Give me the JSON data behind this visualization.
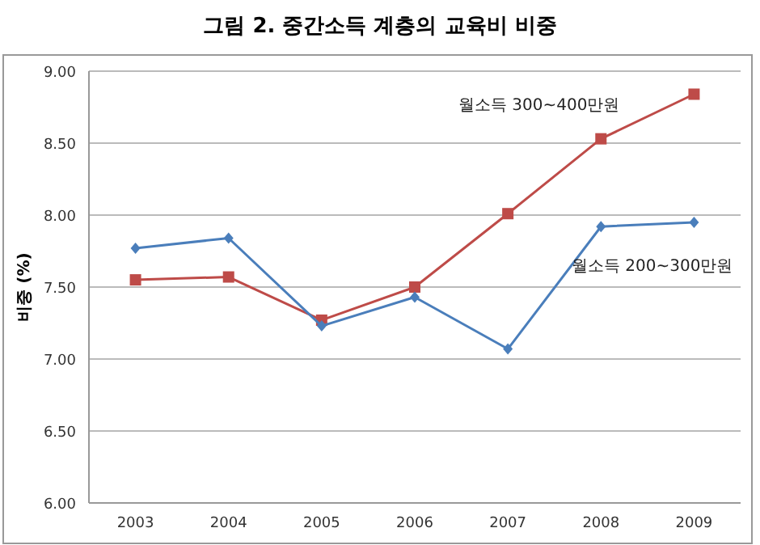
{
  "chart_data": {
    "type": "line",
    "title": "그림 2. 중간소득 계층의 교육비 비중",
    "ylabel": "비중 (%)",
    "categories": [
      "2003",
      "2004",
      "2005",
      "2006",
      "2007",
      "2008",
      "2009"
    ],
    "series": [
      {
        "name": "월소득 200~300만원",
        "color": "#4a7ebb",
        "marker": "diamond",
        "values": [
          7.77,
          7.84,
          7.23,
          7.43,
          7.07,
          7.92,
          7.95
        ]
      },
      {
        "name": "월소득 300~400만원",
        "color": "#be4b48",
        "marker": "square",
        "values": [
          7.55,
          7.57,
          7.27,
          7.5,
          8.01,
          8.53,
          8.84
        ]
      }
    ],
    "ylim": [
      6,
      9
    ],
    "yticks": [
      {
        "value": 6,
        "label": "6.00"
      },
      {
        "value": 6.5,
        "label": "6.50"
      },
      {
        "value": 7,
        "label": "7.00"
      },
      {
        "value": 7.5,
        "label": "7.50"
      },
      {
        "value": 8,
        "label": "8.00"
      },
      {
        "value": 8.5,
        "label": "8.50"
      },
      {
        "value": 9,
        "label": "9.00"
      }
    ],
    "grid": "y",
    "legend": false,
    "line_style": "solid"
  }
}
